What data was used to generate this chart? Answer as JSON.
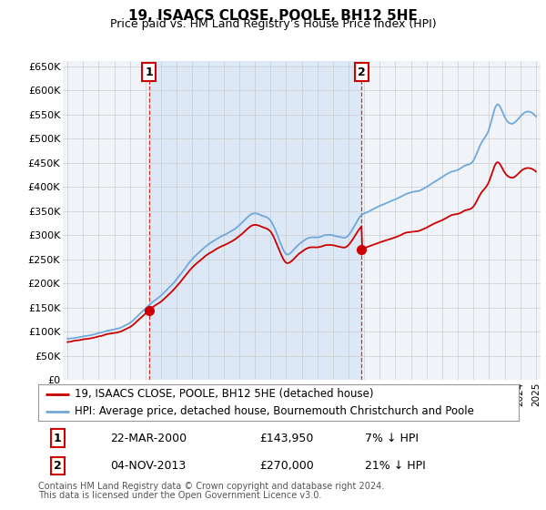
{
  "title": "19, ISAACS CLOSE, POOLE, BH12 5HE",
  "subtitle": "Price paid vs. HM Land Registry’s House Price Index (HPI)",
  "ytick_labels": [
    "£0",
    "£50K",
    "£100K",
    "£150K",
    "£200K",
    "£250K",
    "£300K",
    "£350K",
    "£400K",
    "£450K",
    "£500K",
    "£550K",
    "£600K",
    "£650K"
  ],
  "yticks": [
    0,
    50000,
    100000,
    150000,
    200000,
    250000,
    300000,
    350000,
    400000,
    450000,
    500000,
    550000,
    600000,
    650000
  ],
  "sale1_date": "22-MAR-2000",
  "sale1_price": 143950,
  "sale1_label": "7% ↓ HPI",
  "sale1_x": 2000.22,
  "sale2_date": "04-NOV-2013",
  "sale2_price": 270000,
  "sale2_label": "21% ↓ HPI",
  "sale2_x": 2013.84,
  "legend_line1": "19, ISAACS CLOSE, POOLE, BH12 5HE (detached house)",
  "legend_line2": "HPI: Average price, detached house, Bournemouth Christchurch and Poole",
  "footnote1": "Contains HM Land Registry data © Crown copyright and database right 2024.",
  "footnote2": "This data is licensed under the Open Government Licence v3.0.",
  "hpi_color": "#6fa8dc",
  "price_color": "#cc0000",
  "grid_color": "#cccccc",
  "bg_color": "#ffffff",
  "plot_bg": "#f0f4f8",
  "shade_color": "#dce8f5"
}
